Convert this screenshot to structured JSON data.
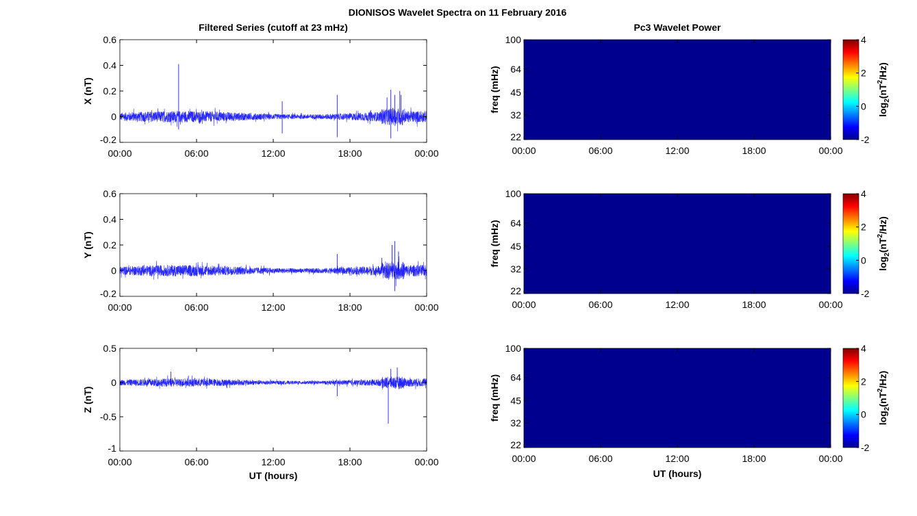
{
  "chart_data": {
    "title": "DIONISOS Wavelet Spectra on 11 February 2016",
    "left_column_title": "Filtered Series (cutoff at 23 mHz)",
    "right_column_title": "Pc3 Wavelet Power",
    "xlabel": "UT (hours)",
    "x_range_hours": [
      0,
      24
    ],
    "x_tick_values": [
      0,
      6,
      12,
      18,
      24
    ],
    "x_tick_labels": [
      "00:00",
      "06:00",
      "12:00",
      "18:00",
      "00:00"
    ],
    "line_color": "#0000ff",
    "series": [
      {
        "type": "line",
        "name": "X",
        "ylabel": "X (nT)",
        "ylim": [
          -0.2,
          0.6
        ],
        "yticks": [
          -0.2,
          0,
          0.2,
          0.4,
          0.6
        ],
        "ytick_labels": [
          "-0.2",
          "0",
          "0.2",
          "0.4",
          "0.6"
        ],
        "noise_amplitude": 0.045,
        "spikes": [
          [
            4.6,
            0.41
          ],
          [
            4.6,
            -0.1
          ],
          [
            12.7,
            0.12
          ],
          [
            12.7,
            -0.13
          ],
          [
            17.0,
            0.17
          ],
          [
            17.0,
            -0.16
          ],
          [
            20.9,
            0.15
          ],
          [
            21.2,
            0.21
          ],
          [
            21.2,
            -0.17
          ],
          [
            21.5,
            0.17
          ],
          [
            21.9,
            0.2
          ],
          [
            22.0,
            0.17
          ]
        ]
      },
      {
        "type": "line",
        "name": "Y",
        "ylabel": "Y (nT)",
        "ylim": [
          -0.2,
          0.6
        ],
        "yticks": [
          -0.2,
          0,
          0.2,
          0.4,
          0.6
        ],
        "ytick_labels": [
          "-0.2",
          "0",
          "0.2",
          "0.4",
          "0.6"
        ],
        "noise_amplitude": 0.045,
        "spikes": [
          [
            17.0,
            0.13
          ],
          [
            20.5,
            0.1
          ],
          [
            21.3,
            0.2
          ],
          [
            21.5,
            0.23
          ],
          [
            21.5,
            -0.16
          ],
          [
            21.8,
            0.15
          ]
        ]
      },
      {
        "type": "line",
        "name": "Z",
        "ylabel": "Z (nT)",
        "ylim": [
          -1,
          0.5
        ],
        "yticks": [
          -1,
          -0.5,
          0,
          0.5
        ],
        "ytick_labels": [
          "-1",
          "-0.5",
          "0",
          "0.5"
        ],
        "noise_amplitude": 0.06,
        "spikes": [
          [
            21.0,
            -0.6
          ],
          [
            21.2,
            0.2
          ],
          [
            21.7,
            0.22
          ],
          [
            17.0,
            -0.2
          ],
          [
            4.0,
            0.16
          ]
        ]
      }
    ],
    "heatmaps": [
      {
        "type": "heatmap",
        "component": "X",
        "ylabel": "freq (mHz)",
        "yticks": [
          22,
          32,
          45,
          64,
          100
        ],
        "ytick_labels": [
          "22",
          "32",
          "45",
          "64",
          "100"
        ],
        "value_everywhere": -2
      },
      {
        "type": "heatmap",
        "component": "Y",
        "ylabel": "freq (mHz)",
        "yticks": [
          22,
          32,
          45,
          64,
          100
        ],
        "ytick_labels": [
          "22",
          "32",
          "45",
          "64",
          "100"
        ],
        "value_everywhere": -2
      },
      {
        "type": "heatmap",
        "component": "Z",
        "ylabel": "freq (mHz)",
        "yticks": [
          22,
          32,
          45,
          64,
          100
        ],
        "ytick_labels": [
          "22",
          "32",
          "45",
          "64",
          "100"
        ],
        "value_everywhere": -2
      }
    ],
    "colorbar": {
      "label_prefix": "log",
      "label_sub": "2",
      "label_main": "(nT",
      "label_sup": "2",
      "label_end": "/Hz)",
      "range": [
        -2,
        4
      ],
      "ticks": [
        -2,
        0,
        2,
        4
      ],
      "tick_labels": [
        "-2",
        "0",
        "2",
        "4"
      ],
      "colormap": "jet",
      "min_color": "#00008f"
    }
  }
}
